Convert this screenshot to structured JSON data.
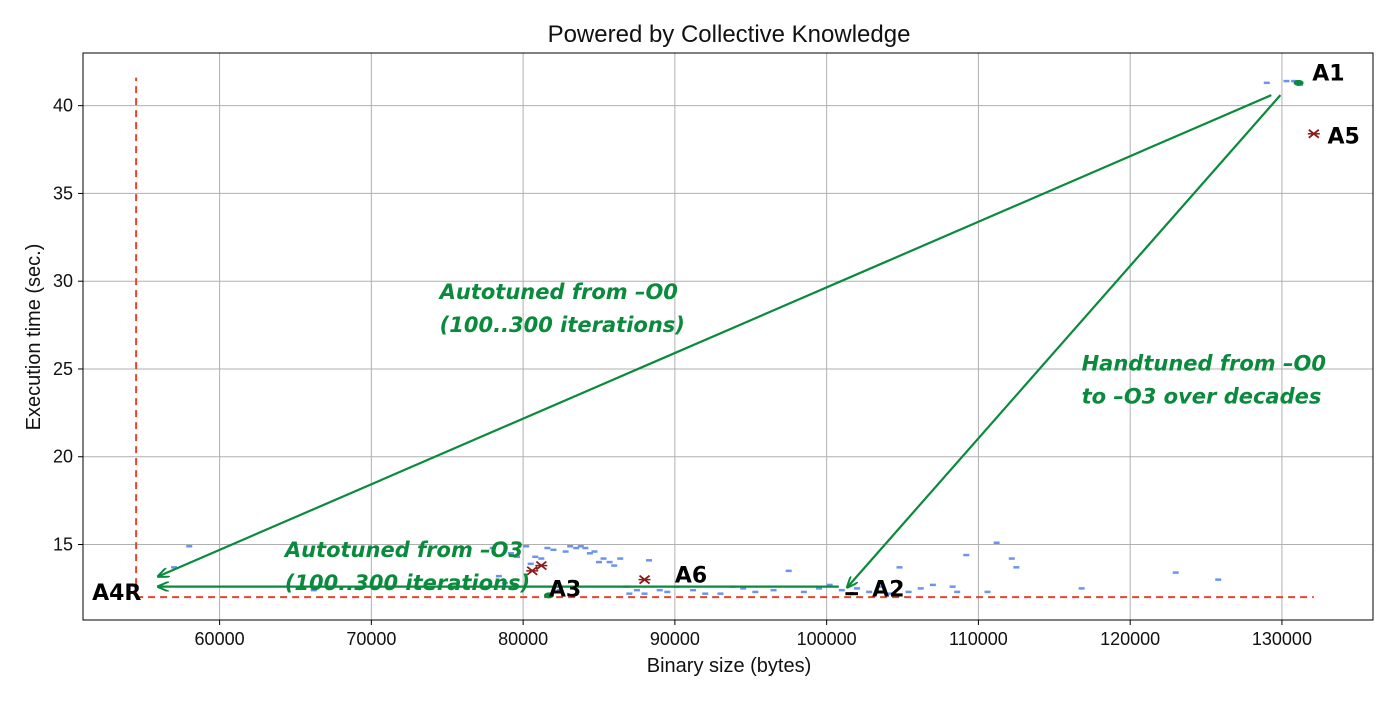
{
  "chart_data": {
    "type": "scatter",
    "title": "Powered by Collective Knowledge",
    "xlabel": "Binary size (bytes)",
    "ylabel": "Execution time (sec.)",
    "xlim": [
      51000,
      136000
    ],
    "ylim": [
      10.7,
      43.0
    ],
    "xticks": [
      60000,
      70000,
      80000,
      90000,
      100000,
      110000,
      120000,
      130000
    ],
    "yticks": [
      15,
      20,
      25,
      30,
      35,
      40
    ],
    "grid": true,
    "colors": {
      "blue": "#6b93f0",
      "darkred": "#8b1c1c",
      "green": "#0a8a3c",
      "red": "#e8442a",
      "black": "#000000"
    },
    "series": [
      {
        "style": "blue-dash",
        "points": [
          [
            57000,
            13.7
          ],
          [
            58000,
            14.9
          ],
          [
            66200,
            12.4
          ],
          [
            78000,
            14.8
          ],
          [
            78400,
            13.2
          ],
          [
            78800,
            12.8
          ],
          [
            79200,
            14.5
          ],
          [
            79600,
            14.3
          ],
          [
            80200,
            14.9
          ],
          [
            80500,
            13.9
          ],
          [
            80800,
            14.3
          ],
          [
            81200,
            14.2
          ],
          [
            81600,
            14.8
          ],
          [
            82000,
            14.7
          ],
          [
            82400,
            12.4
          ],
          [
            82800,
            14.6
          ],
          [
            83100,
            14.9
          ],
          [
            83500,
            14.8
          ],
          [
            83800,
            14.9
          ],
          [
            84100,
            14.8
          ],
          [
            84400,
            14.5
          ],
          [
            84700,
            14.6
          ],
          [
            85000,
            14.0
          ],
          [
            85300,
            14.2
          ],
          [
            85700,
            14.0
          ],
          [
            86000,
            13.8
          ],
          [
            86400,
            14.2
          ],
          [
            86800,
            12.6
          ],
          [
            87000,
            12.2
          ],
          [
            87500,
            12.4
          ],
          [
            88000,
            12.2
          ],
          [
            88300,
            14.1
          ],
          [
            89000,
            12.4
          ],
          [
            89500,
            12.3
          ],
          [
            90100,
            12.6
          ],
          [
            91200,
            12.4
          ],
          [
            92000,
            12.2
          ],
          [
            93000,
            12.2
          ],
          [
            93800,
            12.6
          ],
          [
            94500,
            12.5
          ],
          [
            95300,
            12.3
          ],
          [
            96500,
            12.4
          ],
          [
            97500,
            13.5
          ],
          [
            98500,
            12.3
          ],
          [
            99500,
            12.5
          ],
          [
            100200,
            12.7
          ],
          [
            101000,
            12.4
          ],
          [
            102000,
            12.5
          ],
          [
            102800,
            12.3
          ],
          [
            103600,
            12.6
          ],
          [
            104200,
            12.2
          ],
          [
            104800,
            13.7
          ],
          [
            105400,
            12.3
          ],
          [
            106200,
            12.5
          ],
          [
            107000,
            12.7
          ],
          [
            108300,
            12.6
          ],
          [
            108600,
            12.3
          ],
          [
            109200,
            14.4
          ],
          [
            110600,
            12.3
          ],
          [
            111200,
            15.1
          ],
          [
            112200,
            14.2
          ],
          [
            112500,
            13.7
          ],
          [
            116800,
            12.5
          ],
          [
            123000,
            13.4
          ],
          [
            125800,
            13.0
          ],
          [
            129000,
            41.3
          ],
          [
            130300,
            41.4
          ],
          [
            130800,
            41.4
          ],
          [
            131200,
            41.2
          ]
        ]
      },
      {
        "style": "darkred-x",
        "points": [
          [
            80600,
            13.5
          ],
          [
            81200,
            13.8
          ],
          [
            88000,
            13.0
          ],
          [
            132100,
            38.4
          ]
        ]
      },
      {
        "style": "black-dash",
        "points": [
          [
            101500,
            12.2
          ],
          [
            101800,
            12.2
          ]
        ]
      },
      {
        "style": "green-dot",
        "points": [
          [
            81700,
            12.1
          ],
          [
            131100,
            41.3
          ]
        ]
      }
    ],
    "reference_lines": [
      {
        "name": "min-time",
        "color": "#e8442a",
        "style": "dashed",
        "from": [
          54500,
          12.0
        ],
        "to": [
          132100,
          12.0
        ]
      },
      {
        "name": "min-size",
        "color": "#e8442a",
        "style": "dashed",
        "from": [
          54500,
          12.0
        ],
        "to": [
          54500,
          41.6
        ]
      }
    ],
    "arrows": [
      {
        "name": "autotuned-o0",
        "color": "#0a8a3c",
        "from": [
          129300,
          40.6
        ],
        "to": [
          56000,
          13.2
        ]
      },
      {
        "name": "handtuned",
        "color": "#0a8a3c",
        "from": [
          129900,
          40.6
        ],
        "to": [
          101400,
          12.6
        ]
      },
      {
        "name": "autotuned-o3",
        "color": "#0a8a3c",
        "from": [
          100800,
          12.6
        ],
        "to": [
          56000,
          12.6
        ]
      }
    ],
    "point_labels": [
      {
        "text": "A1",
        "at": [
          132000,
          41.9
        ]
      },
      {
        "text": "A5",
        "at": [
          133000,
          38.3
        ]
      },
      {
        "text": "A2",
        "at": [
          103000,
          12.5
        ]
      },
      {
        "text": "A3",
        "at": [
          81700,
          12.5
        ]
      },
      {
        "text": "A6",
        "at": [
          90000,
          13.3
        ]
      },
      {
        "text": "A4R",
        "at": [
          51600,
          12.3
        ]
      }
    ],
    "annotations": [
      {
        "lines": [
          "Autotuned from –O0",
          "(100..300 iterations)"
        ],
        "at": [
          74500,
          29.0
        ]
      },
      {
        "lines": [
          "Handtuned from –O0",
          "to –O3 over decades"
        ],
        "at": [
          116800,
          24.9
        ]
      },
      {
        "lines": [
          "Autotuned from –O3",
          "(100..300 iterations)"
        ],
        "at": [
          64300,
          14.3
        ]
      }
    ]
  }
}
